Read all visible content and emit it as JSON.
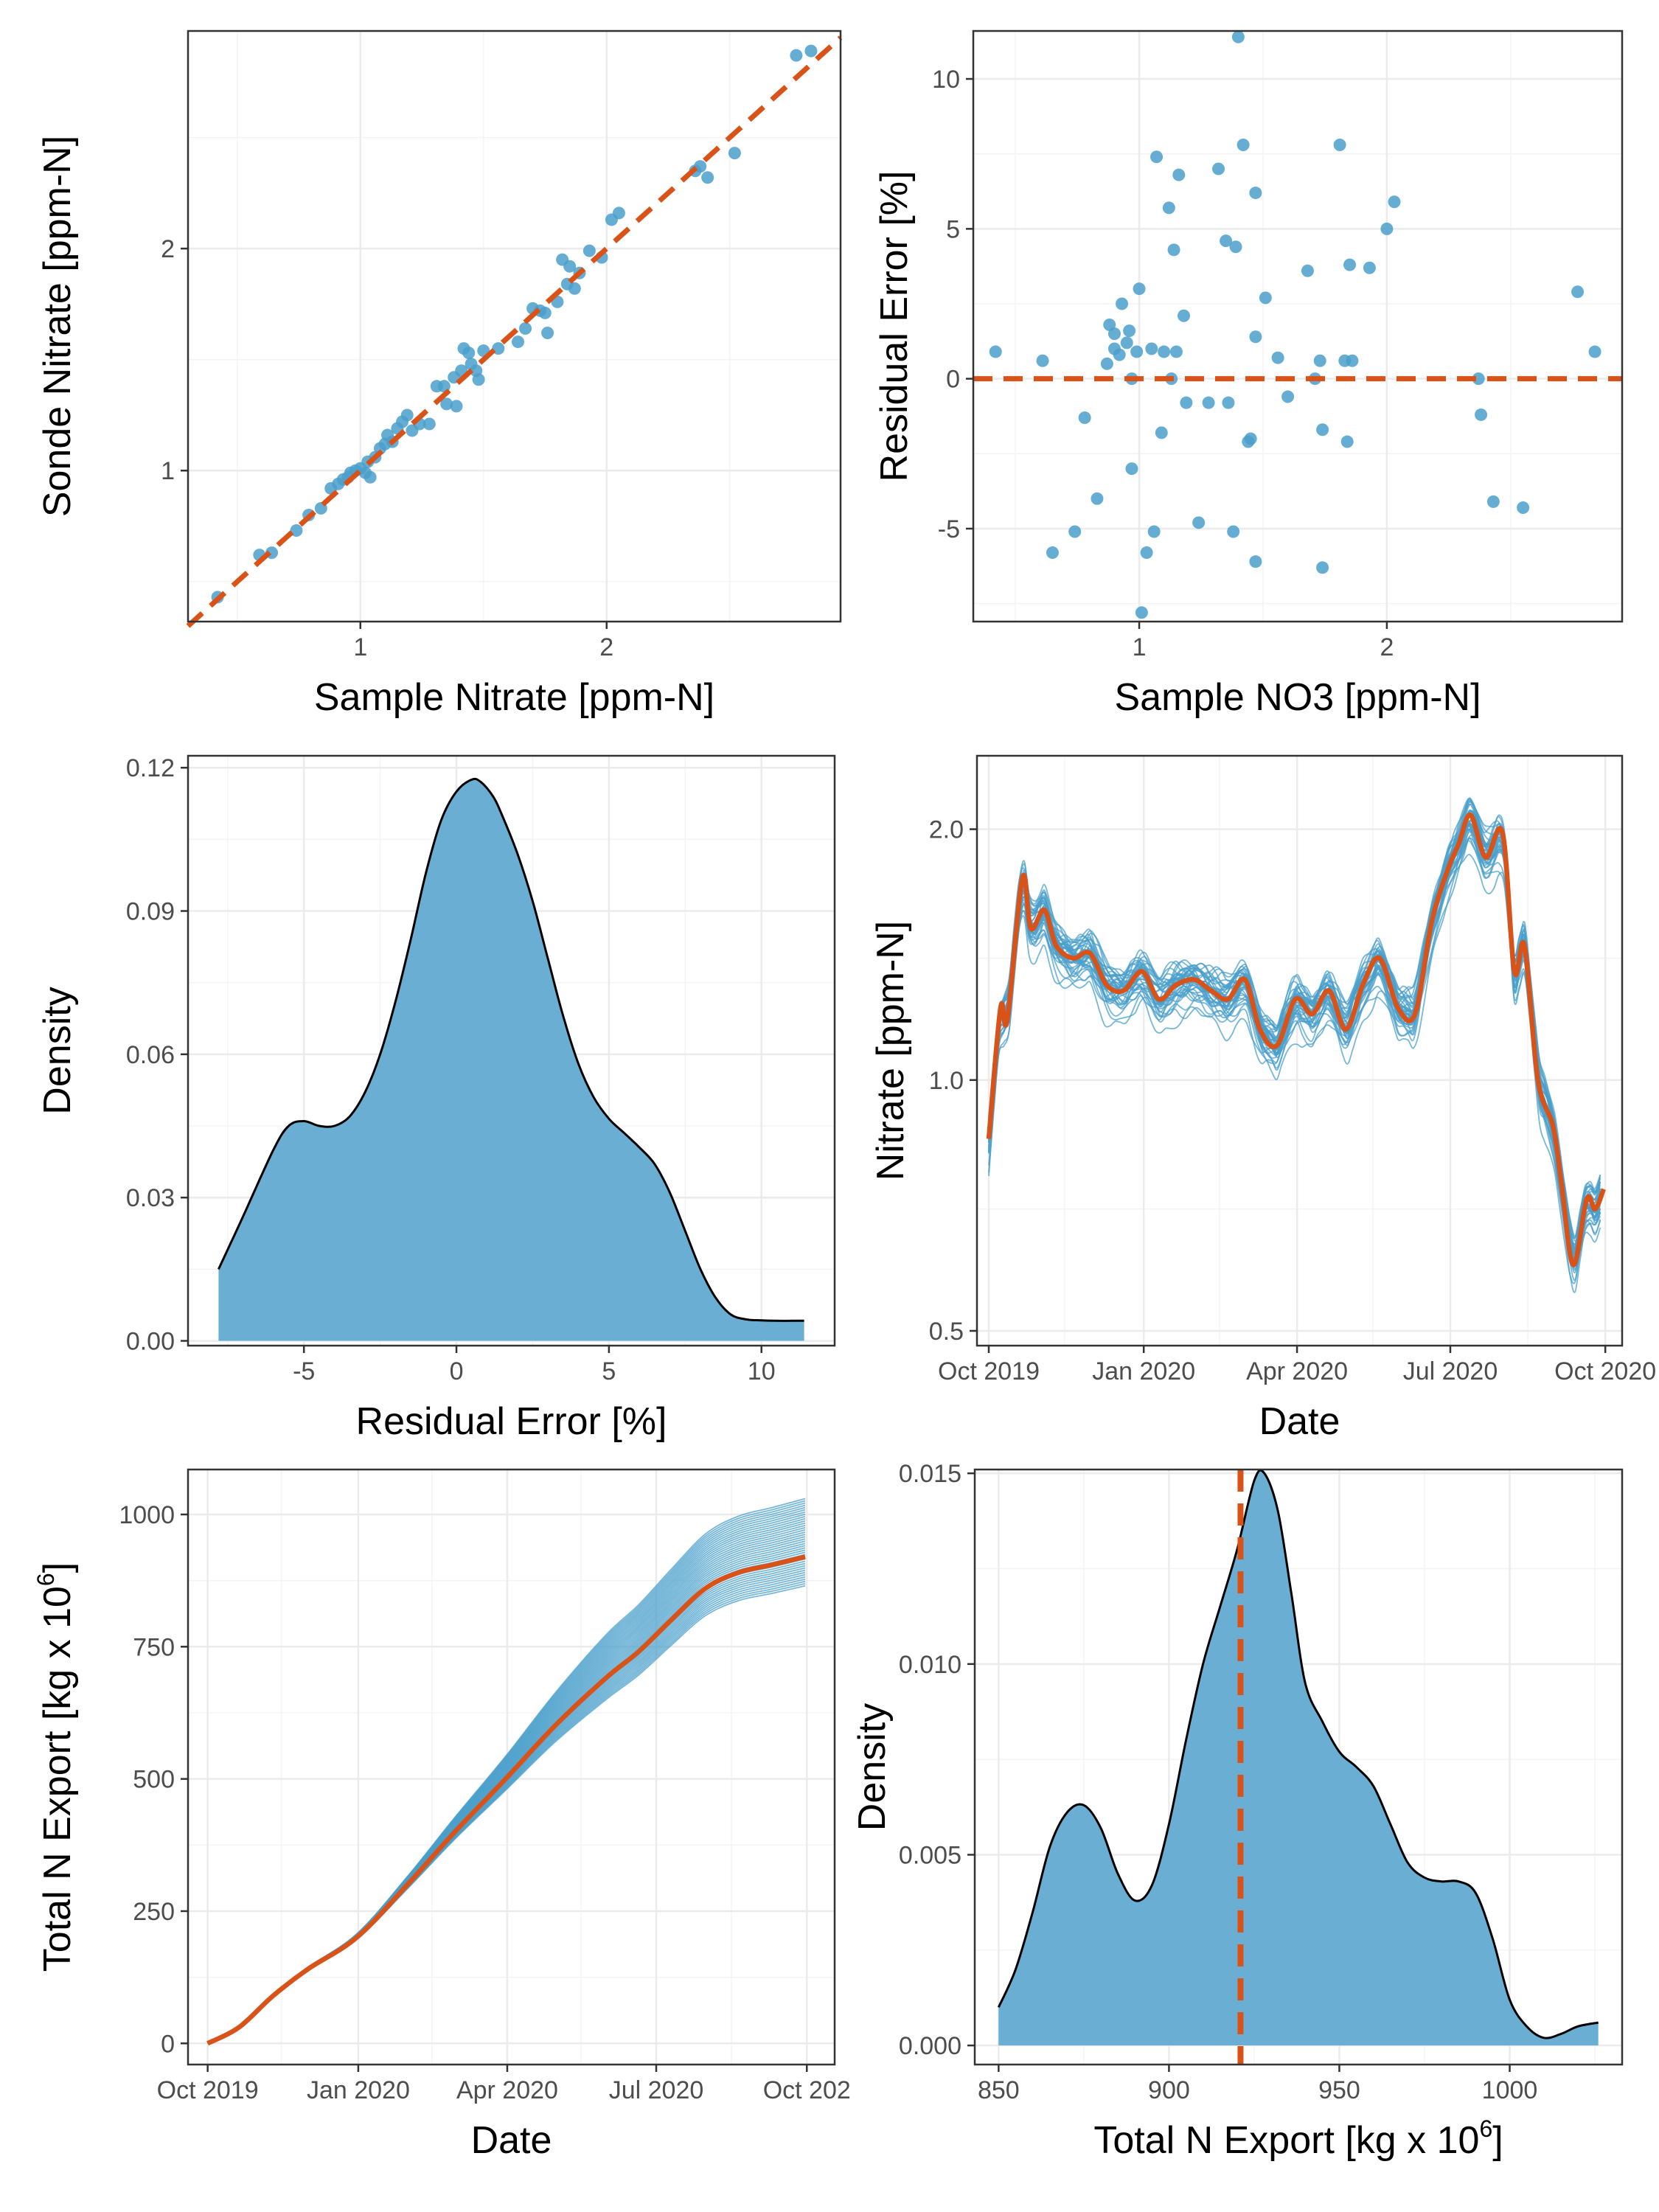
{
  "colors": {
    "blue": "#4a9fcb",
    "fill": "#6aafd3",
    "orange": "#d95319",
    "black": "#000000"
  },
  "chart_data": [
    {
      "id": "p1",
      "type": "scatter",
      "xlabel": "Sample Nitrate [ppm-N]",
      "ylabel": "Sonde Nitrate [ppm-N]",
      "xlim": [
        0.3,
        2.95
      ],
      "ylim": [
        0.32,
        2.98
      ],
      "xticks": [
        1,
        2
      ],
      "yticks": [
        1,
        2
      ],
      "reference_line": {
        "slope": 1,
        "intercept": 0,
        "style": "dashed"
      },
      "points": [
        [
          0.42,
          0.43
        ],
        [
          0.59,
          0.62
        ],
        [
          0.64,
          0.63
        ],
        [
          0.74,
          0.73
        ],
        [
          0.79,
          0.8
        ],
        [
          0.84,
          0.83
        ],
        [
          0.88,
          0.92
        ],
        [
          0.91,
          0.94
        ],
        [
          0.93,
          0.96
        ],
        [
          0.95,
          0.97
        ],
        [
          0.96,
          0.99
        ],
        [
          0.98,
          1.0
        ],
        [
          1.0,
          1.01
        ],
        [
          1.02,
          0.99
        ],
        [
          1.03,
          1.04
        ],
        [
          1.04,
          0.97
        ],
        [
          1.06,
          1.06
        ],
        [
          1.08,
          1.1
        ],
        [
          1.1,
          1.12
        ],
        [
          1.11,
          1.16
        ],
        [
          1.13,
          1.13
        ],
        [
          1.15,
          1.19
        ],
        [
          1.17,
          1.22
        ],
        [
          1.19,
          1.25
        ],
        [
          1.21,
          1.18
        ],
        [
          1.24,
          1.21
        ],
        [
          1.28,
          1.21
        ],
        [
          1.31,
          1.38
        ],
        [
          1.34,
          1.38
        ],
        [
          1.35,
          1.3
        ],
        [
          1.38,
          1.42
        ],
        [
          1.39,
          1.29
        ],
        [
          1.41,
          1.45
        ],
        [
          1.42,
          1.55
        ],
        [
          1.44,
          1.53
        ],
        [
          1.45,
          1.48
        ],
        [
          1.47,
          1.45
        ],
        [
          1.48,
          1.41
        ],
        [
          1.5,
          1.54
        ],
        [
          1.56,
          1.55
        ],
        [
          1.64,
          1.58
        ],
        [
          1.67,
          1.64
        ],
        [
          1.7,
          1.73
        ],
        [
          1.73,
          1.72
        ],
        [
          1.75,
          1.71
        ],
        [
          1.76,
          1.62
        ],
        [
          1.8,
          1.76
        ],
        [
          1.82,
          1.95
        ],
        [
          1.84,
          1.84
        ],
        [
          1.85,
          1.92
        ],
        [
          1.87,
          1.82
        ],
        [
          1.89,
          1.89
        ],
        [
          1.93,
          1.99
        ],
        [
          1.98,
          1.96
        ],
        [
          2.02,
          2.13
        ],
        [
          2.05,
          2.16
        ],
        [
          2.36,
          2.35
        ],
        [
          2.38,
          2.37
        ],
        [
          2.41,
          2.32
        ],
        [
          2.52,
          2.43
        ],
        [
          2.77,
          2.87
        ],
        [
          2.83,
          2.89
        ]
      ]
    },
    {
      "id": "p2",
      "type": "scatter",
      "xlabel": "Sample NO3 [ppm-N]",
      "ylabel": "Residual Error [%]",
      "xlim": [
        0.33,
        2.95
      ],
      "ylim": [
        -8.1,
        11.6
      ],
      "xticks": [
        1,
        2
      ],
      "yticks": [
        -5,
        0,
        5,
        10
      ],
      "reference_line": {
        "slope": 0,
        "intercept": 0,
        "style": "dashed"
      },
      "points": [
        [
          0.42,
          0.9
        ],
        [
          0.61,
          0.6
        ],
        [
          0.65,
          -5.8
        ],
        [
          0.74,
          -5.1
        ],
        [
          0.78,
          -1.3
        ],
        [
          0.83,
          -4.0
        ],
        [
          0.87,
          0.5
        ],
        [
          0.88,
          1.8
        ],
        [
          0.9,
          1.5
        ],
        [
          0.9,
          1.0
        ],
        [
          0.92,
          0.8
        ],
        [
          0.93,
          2.5
        ],
        [
          0.95,
          1.2
        ],
        [
          0.96,
          1.6
        ],
        [
          0.97,
          0.0
        ],
        [
          0.97,
          -3.0
        ],
        [
          0.99,
          0.9
        ],
        [
          1.0,
          3.0
        ],
        [
          1.01,
          -7.8
        ],
        [
          1.03,
          -5.8
        ],
        [
          1.05,
          1.0
        ],
        [
          1.06,
          -5.1
        ],
        [
          1.07,
          7.4
        ],
        [
          1.09,
          -1.8
        ],
        [
          1.1,
          0.9
        ],
        [
          1.12,
          5.7
        ],
        [
          1.13,
          0.0
        ],
        [
          1.14,
          4.3
        ],
        [
          1.15,
          0.9
        ],
        [
          1.16,
          6.8
        ],
        [
          1.18,
          2.1
        ],
        [
          1.19,
          -0.8
        ],
        [
          1.24,
          -4.8
        ],
        [
          1.28,
          -0.8
        ],
        [
          1.32,
          7.0
        ],
        [
          1.35,
          4.6
        ],
        [
          1.36,
          -0.8
        ],
        [
          1.38,
          -5.1
        ],
        [
          1.39,
          4.4
        ],
        [
          1.4,
          11.4
        ],
        [
          1.42,
          7.8
        ],
        [
          1.44,
          -2.1
        ],
        [
          1.45,
          -2.0
        ],
        [
          1.47,
          6.2
        ],
        [
          1.47,
          -6.1
        ],
        [
          1.47,
          1.4
        ],
        [
          1.51,
          2.7
        ],
        [
          1.56,
          0.7
        ],
        [
          1.6,
          -0.6
        ],
        [
          1.68,
          3.6
        ],
        [
          1.71,
          0.0
        ],
        [
          1.73,
          0.6
        ],
        [
          1.74,
          -1.7
        ],
        [
          1.74,
          -6.3
        ],
        [
          1.81,
          7.8
        ],
        [
          1.83,
          0.6
        ],
        [
          1.84,
          -2.1
        ],
        [
          1.85,
          3.8
        ],
        [
          1.86,
          0.6
        ],
        [
          1.93,
          3.7
        ],
        [
          2.0,
          5.0
        ],
        [
          2.03,
          5.9
        ],
        [
          2.37,
          0.0
        ],
        [
          2.38,
          -1.2
        ],
        [
          2.43,
          -4.1
        ],
        [
          2.55,
          -4.3
        ],
        [
          2.77,
          2.9
        ],
        [
          2.84,
          0.9
        ]
      ]
    },
    {
      "id": "p3",
      "type": "area",
      "xlabel": "Residual Error [%]",
      "ylabel": "Density",
      "xlim": [
        -8.8,
        12.4
      ],
      "ylim": [
        -0.001,
        0.1225
      ],
      "xticks": [
        -5,
        0,
        5,
        10
      ],
      "yticks": [
        0.0,
        0.03,
        0.06,
        0.09,
        0.12
      ],
      "ytick_labels": [
        "0.00",
        "0.03",
        "0.06",
        "0.09",
        "0.12"
      ],
      "x": [
        -7.8,
        -7,
        -6,
        -5.5,
        -5,
        -4.5,
        -4,
        -3.5,
        -3,
        -2.5,
        -2,
        -1.5,
        -1,
        -0.5,
        0,
        0.5,
        0.8,
        1.2,
        1.5,
        2,
        2.5,
        3,
        3.5,
        4,
        4.5,
        5,
        5.5,
        6,
        6.5,
        7,
        7.5,
        8,
        8.5,
        9,
        9.5,
        10,
        10.5,
        11,
        11.4
      ],
      "y": [
        0.015,
        0.026,
        0.04,
        0.045,
        0.046,
        0.045,
        0.045,
        0.047,
        0.052,
        0.06,
        0.071,
        0.084,
        0.098,
        0.109,
        0.115,
        0.1175,
        0.117,
        0.114,
        0.11,
        0.102,
        0.092,
        0.08,
        0.068,
        0.058,
        0.051,
        0.0465,
        0.0435,
        0.0405,
        0.037,
        0.031,
        0.023,
        0.015,
        0.009,
        0.0055,
        0.0045,
        0.0043,
        0.0042,
        0.0042,
        0.0042
      ]
    },
    {
      "id": "p4",
      "type": "line",
      "xlabel": "Date",
      "ylabel": "Nitrate [ppm-N]",
      "x_axis": "date",
      "ylim_log": [
        0.48,
        2.45
      ],
      "yscale": "log",
      "xticks": [
        "Oct 2019",
        "Jan 2020",
        "Apr 2020",
        "Jul 2020",
        "Oct 2020"
      ],
      "yticks": [
        0.5,
        1.0,
        2.0
      ],
      "ytick_labels": [
        "0.5",
        "1.0",
        "2.0"
      ],
      "ensemble_members": 40,
      "ensemble_spread": 0.035,
      "x_dates": [
        "2019-10-01",
        "2019-10-08",
        "2019-10-12",
        "2019-10-21",
        "2019-10-26",
        "2019-11-03",
        "2019-11-10",
        "2019-11-20",
        "2019-11-30",
        "2019-12-10",
        "2019-12-20",
        "2019-12-31",
        "2020-01-10",
        "2020-01-20",
        "2020-01-31",
        "2020-02-10",
        "2020-02-20",
        "2020-03-01",
        "2020-03-10",
        "2020-03-20",
        "2020-03-31",
        "2020-04-10",
        "2020-04-20",
        "2020-04-30",
        "2020-05-10",
        "2020-05-20",
        "2020-05-31",
        "2020-06-10",
        "2020-06-20",
        "2020-06-30",
        "2020-07-06",
        "2020-07-13",
        "2020-07-22",
        "2020-08-01",
        "2020-08-08",
        "2020-08-14",
        "2020-08-22",
        "2020-08-31",
        "2020-09-05",
        "2020-09-12",
        "2020-09-20",
        "2020-09-25",
        "2020-09-30"
      ],
      "y": [
        0.85,
        1.22,
        1.18,
        1.75,
        1.52,
        1.6,
        1.45,
        1.4,
        1.42,
        1.3,
        1.28,
        1.35,
        1.25,
        1.3,
        1.32,
        1.28,
        1.25,
        1.32,
        1.15,
        1.1,
        1.25,
        1.2,
        1.28,
        1.15,
        1.3,
        1.4,
        1.22,
        1.2,
        1.55,
        1.8,
        1.92,
        2.08,
        1.85,
        1.98,
        1.35,
        1.45,
        1.0,
        0.88,
        0.75,
        0.6,
        0.72,
        0.7,
        0.74
      ]
    },
    {
      "id": "p5",
      "type": "line",
      "xlabel": "Date",
      "ylabel": "Total N Export [kg x 10",
      "ylabel_sup": "6",
      "ylabel_suffix": "]",
      "x_axis": "date",
      "ylim": [
        -40,
        1085
      ],
      "xticks": [
        "Oct 2019",
        "Jan 2020",
        "Apr 2020",
        "Jul 2020",
        "Oct 202"
      ],
      "yticks": [
        0,
        250,
        500,
        750,
        1000
      ],
      "ensemble_members": 40,
      "x_dates": [
        "2019-10-01",
        "2019-10-20",
        "2019-11-10",
        "2019-12-01",
        "2019-12-31",
        "2020-01-31",
        "2020-02-29",
        "2020-03-31",
        "2020-04-30",
        "2020-05-31",
        "2020-06-20",
        "2020-07-10",
        "2020-07-31",
        "2020-08-20",
        "2020-09-10",
        "2020-09-30"
      ],
      "y": [
        0,
        30,
        90,
        140,
        200,
        300,
        400,
        500,
        600,
        690,
        740,
        800,
        860,
        890,
        905,
        920
      ],
      "ensemble_final_range": [
        865,
        1030
      ]
    },
    {
      "id": "p6",
      "type": "area",
      "xlabel": "Total N Export [kg x 10",
      "xlabel_sup": "6",
      "xlabel_suffix": "]",
      "ylabel": "Density",
      "xlim": [
        843,
        1033
      ],
      "ylim": [
        -0.0005,
        0.0151
      ],
      "xticks": [
        850,
        900,
        950,
        1000
      ],
      "yticks": [
        0.0,
        0.005,
        0.01,
        0.015
      ],
      "ytick_labels": [
        "0.000",
        "0.005",
        "0.010",
        "0.015"
      ],
      "vline": 921,
      "x": [
        850,
        855,
        860,
        865,
        870,
        875,
        880,
        885,
        890,
        895,
        900,
        905,
        910,
        915,
        920,
        925,
        928,
        932,
        936,
        940,
        945,
        950,
        955,
        960,
        965,
        970,
        975,
        980,
        985,
        990,
        995,
        1000,
        1005,
        1010,
        1015,
        1020,
        1026
      ],
      "y": [
        0.001,
        0.002,
        0.0035,
        0.0052,
        0.0061,
        0.0063,
        0.0057,
        0.0045,
        0.0038,
        0.0042,
        0.0058,
        0.008,
        0.01,
        0.0115,
        0.013,
        0.0148,
        0.015,
        0.014,
        0.0118,
        0.0095,
        0.0085,
        0.0077,
        0.0073,
        0.0068,
        0.0058,
        0.0048,
        0.0044,
        0.0043,
        0.0043,
        0.004,
        0.0028,
        0.0012,
        0.0005,
        0.0002,
        0.0003,
        0.0005,
        0.0006
      ]
    }
  ]
}
